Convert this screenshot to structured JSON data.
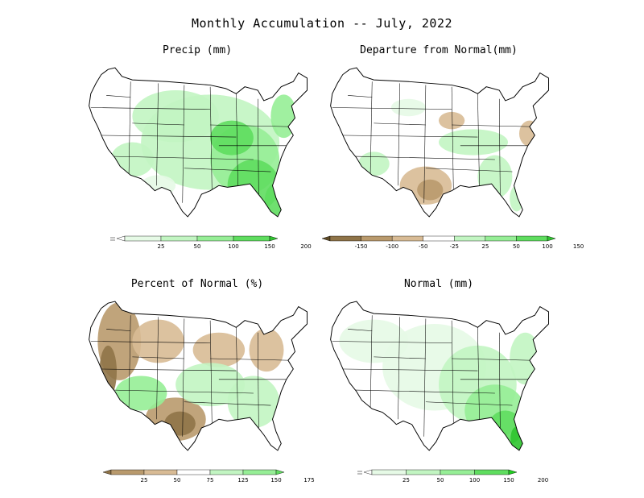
{
  "title": "Monthly Accumulation -- July, 2022",
  "colors": {
    "outline": "#000000",
    "green1": "#e6fae6",
    "green2": "#c2f5c2",
    "green3": "#96ee96",
    "green4": "#5fdd5f",
    "green5": "#2fc42f",
    "brown1": "#d8bb95",
    "brown2": "#b99a6d",
    "brown3": "#8f7448",
    "brown4": "#5e4a25"
  },
  "panels": [
    {
      "id": "precip",
      "title": "Precip (mm)",
      "colorbar": {
        "ticks": [
          "25",
          "50",
          "100",
          "150",
          "200"
        ],
        "swatches": [
          "#ffffff",
          "#e6fae6",
          "#c2f5c2",
          "#96ee96",
          "#5fdd5f",
          "#2fc42f"
        ],
        "lower_open": true
      }
    },
    {
      "id": "departure",
      "title": "Departure from Normal(mm)",
      "colorbar": {
        "ticks": [
          "-150",
          "-100",
          "-50",
          "-25",
          "25",
          "50",
          "100",
          "150"
        ],
        "swatches": [
          "#5e4a25",
          "#8f7448",
          "#b99a6d",
          "#d8bb95",
          "#ffffff",
          "#c2f5c2",
          "#96ee96",
          "#5fdd5f",
          "#2fc42f"
        ],
        "lower_open": false
      }
    },
    {
      "id": "percent",
      "title": "Percent of Normal (%)",
      "colorbar": {
        "ticks": [
          "25",
          "50",
          "75",
          "125",
          "150",
          "175"
        ],
        "swatches": [
          "#8f7448",
          "#b99a6d",
          "#d8bb95",
          "#ffffff",
          "#c2f5c2",
          "#96ee96",
          "#5fdd5f"
        ],
        "lower_open": false
      }
    },
    {
      "id": "normal",
      "title": "Normal (mm)",
      "colorbar": {
        "ticks": [
          "25",
          "50",
          "100",
          "150",
          "200"
        ],
        "swatches": [
          "#ffffff",
          "#e6fae6",
          "#c2f5c2",
          "#96ee96",
          "#5fdd5f",
          "#1fcf1f"
        ],
        "lower_open": true
      }
    }
  ]
}
